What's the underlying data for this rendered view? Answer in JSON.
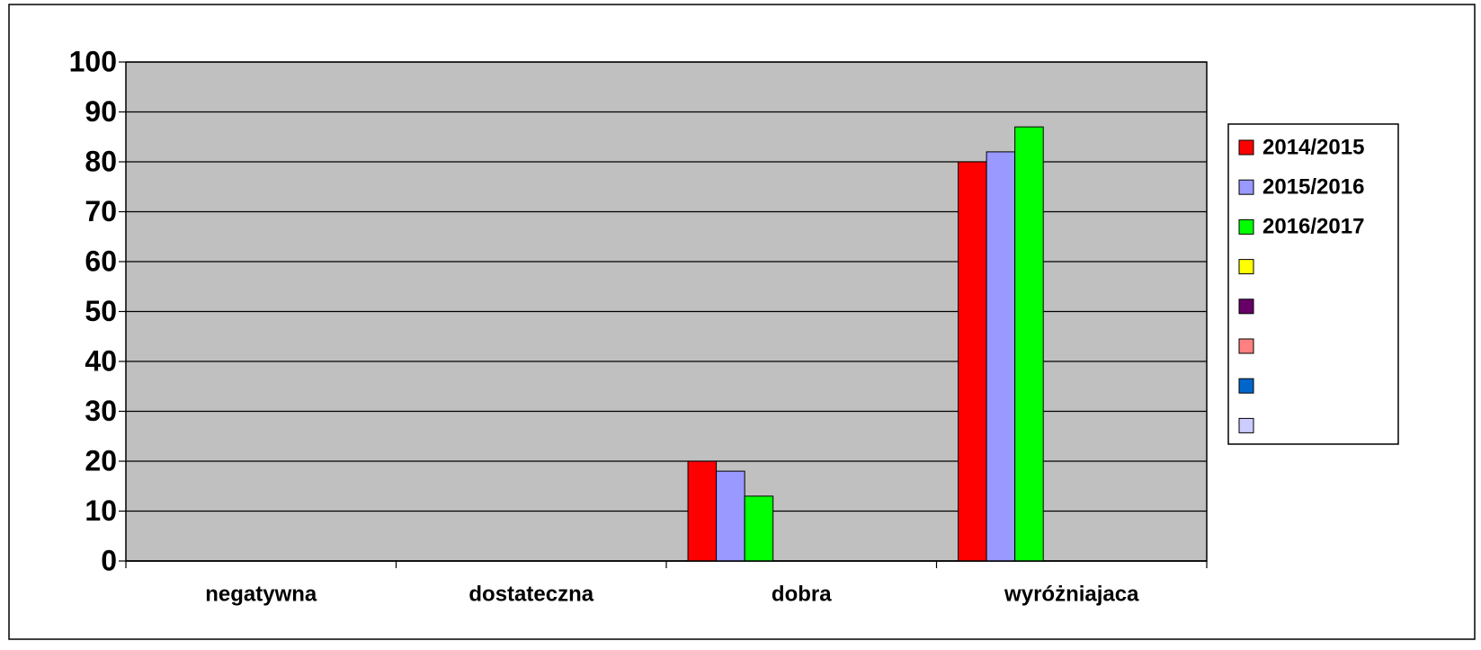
{
  "chart_data": {
    "type": "bar",
    "categories": [
      "negatywna",
      "dostateczna",
      "dobra",
      "wyróżniajaca"
    ],
    "series": [
      {
        "name": "2014/2015",
        "color": "#ff0000",
        "values": [
          0,
          0,
          20,
          80
        ]
      },
      {
        "name": "2015/2016",
        "color": "#9999ff",
        "values": [
          0,
          0,
          18,
          82
        ]
      },
      {
        "name": "2016/2017",
        "color": "#00ff00",
        "values": [
          0,
          0,
          13,
          87
        ]
      },
      {
        "color": "#ffff00",
        "values": [
          null,
          null,
          null,
          null
        ]
      },
      {
        "color": "#660066",
        "values": [
          null,
          null,
          null,
          null
        ]
      },
      {
        "color": "#ff8080",
        "values": [
          null,
          null,
          null,
          null
        ]
      },
      {
        "color": "#0066cc",
        "values": [
          null,
          null,
          null,
          null
        ]
      },
      {
        "color": "#ccccff",
        "values": [
          null,
          null,
          null,
          null
        ]
      }
    ],
    "ylim": [
      0,
      100
    ],
    "yticks": [
      0,
      10,
      20,
      30,
      40,
      50,
      60,
      70,
      80,
      90,
      100
    ],
    "grid": true,
    "legend": "right",
    "plot_background": "#c0c0c0"
  }
}
